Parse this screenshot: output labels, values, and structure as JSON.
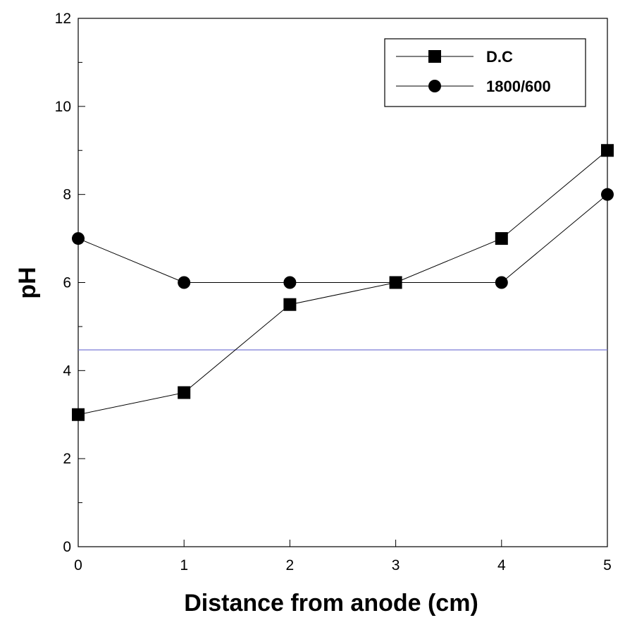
{
  "chart_data": {
    "type": "line",
    "title": "",
    "xlabel": "Distance from anode (cm)",
    "ylabel": "pH",
    "xlim": [
      0,
      5
    ],
    "ylim": [
      0,
      12
    ],
    "xticks": [
      0,
      1,
      2,
      3,
      4,
      5
    ],
    "yticks": [
      0,
      2,
      4,
      6,
      8,
      10,
      12
    ],
    "x_tick_labels": [
      "0",
      "1",
      "2",
      "3",
      "4",
      "5"
    ],
    "y_tick_labels": [
      "0",
      "2",
      "4",
      "6",
      "8",
      "10",
      "12"
    ],
    "grid": false,
    "legend_position": "top-right",
    "reference_line": {
      "y": 4.47,
      "color": "#7a7ad6"
    },
    "series": [
      {
        "name": "D.C",
        "marker": "square",
        "color": "#000000",
        "x": [
          0,
          1,
          2,
          3,
          4,
          5
        ],
        "values": [
          3.0,
          3.5,
          5.5,
          6.0,
          7.0,
          9.0
        ]
      },
      {
        "name": "1800/600",
        "marker": "circle",
        "color": "#000000",
        "x": [
          0,
          1,
          2,
          3,
          4,
          5
        ],
        "values": [
          7.0,
          6.0,
          6.0,
          6.0,
          6.0,
          8.0
        ]
      }
    ]
  }
}
